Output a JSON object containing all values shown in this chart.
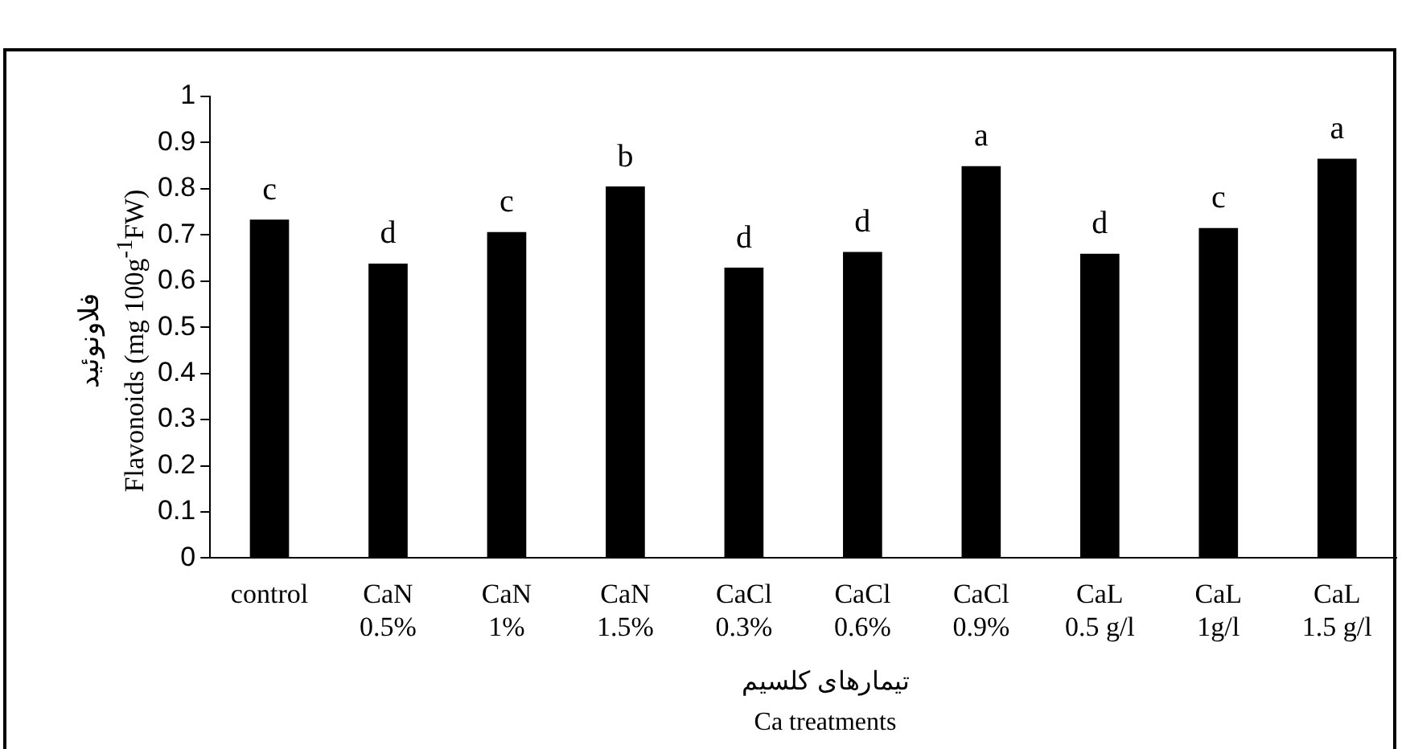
{
  "chart_data": {
    "type": "bar",
    "ylabel": "فلاونوئید\nFlavonoids (mg 100g$^{-1}$FW)",
    "xlabel": "تیمارهای کلسیم\nCa treatments",
    "categories": [
      "control",
      "CaN\n0.5%",
      "CaN\n1%",
      "CaN\n1.5%",
      "CaCl\n0.3%",
      "CaCl\n0.6%",
      "CaCl\n0.9%",
      "CaL\n0.5 g/l",
      "CaL\n1g/l",
      "CaL\n1.5 g/l"
    ],
    "values": [
      0.733,
      0.638,
      0.706,
      0.805,
      0.629,
      0.663,
      0.849,
      0.659,
      0.715,
      0.865
    ],
    "value_labels": [
      "c",
      "d",
      "c",
      "b",
      "d",
      "d",
      "a",
      "d",
      "c",
      "a"
    ],
    "color": "#000000",
    "ylim": [
      0,
      1
    ],
    "yticks": [
      0,
      0.1,
      0.2,
      0.3,
      0.4,
      0.5,
      0.6,
      0.7,
      0.8,
      0.9,
      1
    ],
    "grid": false,
    "legend": false
  }
}
